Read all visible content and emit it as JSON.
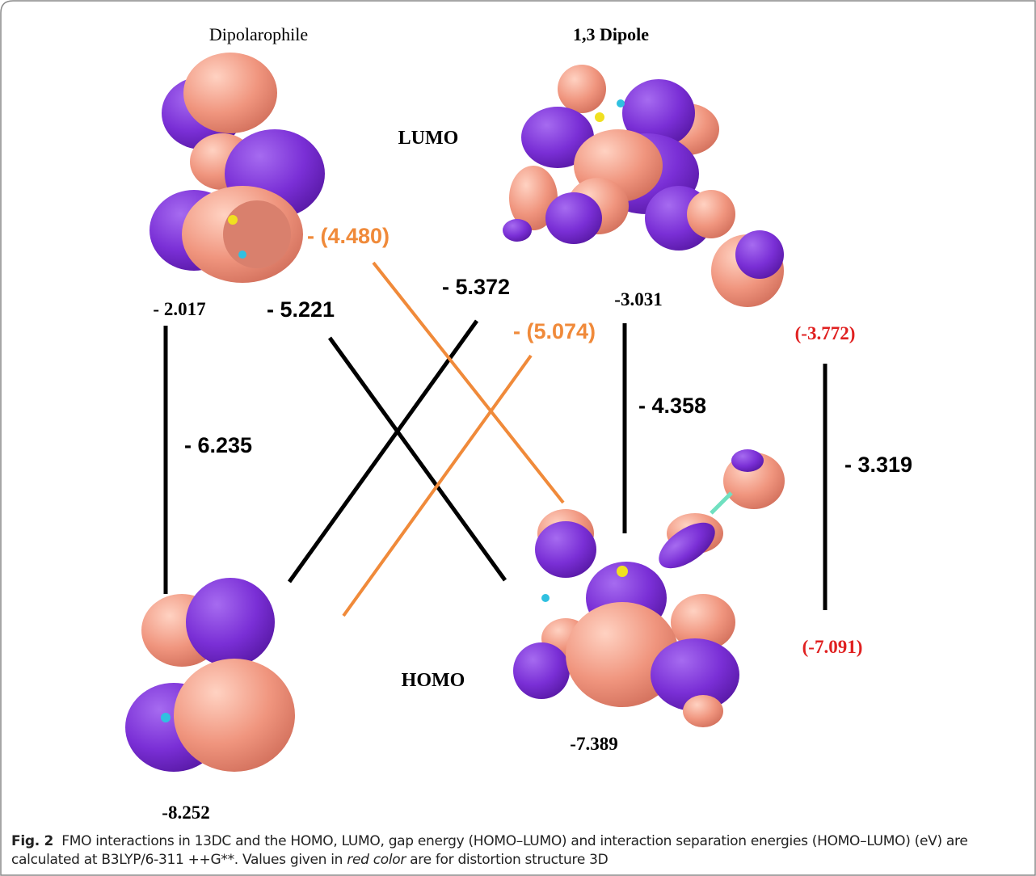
{
  "header": {
    "left": "Dipolarophile",
    "right": "1,3 Dipole"
  },
  "levels": {
    "lumo": "LUMO",
    "homo": "HOMO"
  },
  "energies": {
    "dipolarophile_lumo": "- 2.017",
    "dipolarophile_homo": "-8.252",
    "dipole_lumo": "-3.031",
    "dipole_homo": "-7.389",
    "distorted_lumo": "(-3.772)",
    "distorted_homo": "(-7.091)"
  },
  "gaps": {
    "dipolarophile": "- 6.235",
    "dipole": "- 4.358",
    "distorted": "- 3.319"
  },
  "interactions": {
    "black_a": "- 5.221",
    "black_b": "- 5.372",
    "orange_a": "- (4.480)",
    "orange_b": "- (5.074)"
  },
  "caption": {
    "label": "Fig. 2",
    "text": "FMO interactions in 13DC and the HOMO, LUMO, gap energy (HOMO–LUMO) and interaction separation energies (HOMO–LUMO) (eV) are calculated at B3LYP/6-311 ++G**. Values given in ",
    "emphasis": "red color",
    "tail": " are for distortion structure 3D"
  }
}
